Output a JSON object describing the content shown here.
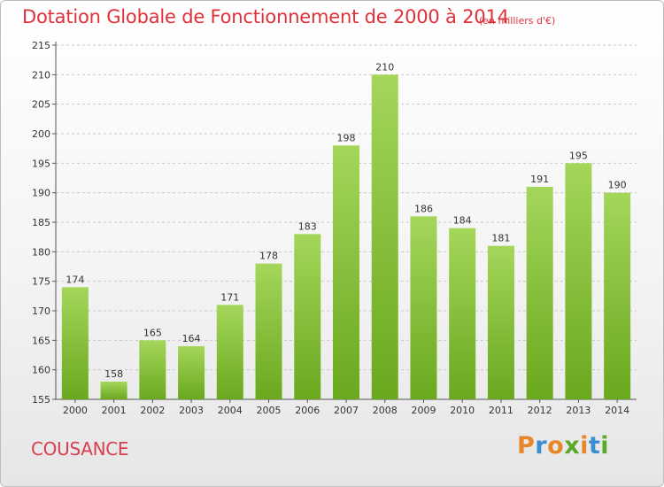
{
  "header": {
    "title": "Dotation Globale de Fonctionnement de 2000 à 2014",
    "subtitle": "(en milliers d'€)"
  },
  "footer": {
    "commune": "COUSANCE",
    "logo": "Proxiti"
  },
  "colors": {
    "title": "#e0303a",
    "bar_light": "#a4d65a",
    "bar_dark": "#6aa81e",
    "logo_letters": [
      "#e8862a",
      "#3a8fd0",
      "#e8862a",
      "#5aaa2a",
      "#e8862a",
      "#3a8fd0",
      "#5aaa2a"
    ]
  },
  "chart_data": {
    "type": "bar",
    "categories": [
      "2000",
      "2001",
      "2002",
      "2003",
      "2004",
      "2005",
      "2006",
      "2007",
      "2008",
      "2009",
      "2010",
      "2011",
      "2012",
      "2013",
      "2014"
    ],
    "values": [
      174,
      158,
      165,
      164,
      171,
      178,
      183,
      198,
      210,
      186,
      184,
      181,
      191,
      195,
      190
    ],
    "ylim": [
      155,
      215
    ],
    "yticks": [
      155,
      160,
      165,
      170,
      175,
      180,
      185,
      190,
      195,
      200,
      205,
      210,
      215
    ],
    "grid": "horizontal-dashed",
    "legend": "none"
  }
}
